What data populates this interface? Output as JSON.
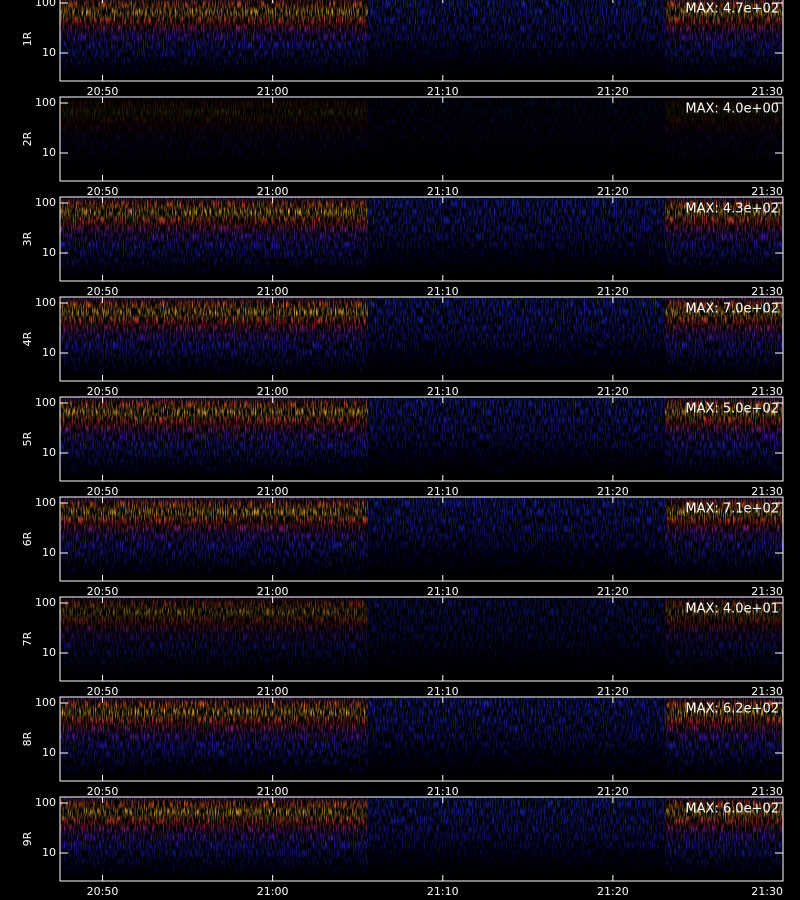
{
  "chart_data": [
    {
      "type": "spectrogram",
      "ylabel": "1R",
      "max": {
        "value": 470,
        "label": "MAX: 4.7e+02"
      },
      "ylog": true,
      "ylim": [
        2.75,
        132
      ],
      "yticks": [
        10,
        100
      ],
      "xlim": [
        1247.5,
        1290
      ],
      "xticks": [
        {
          "value": 1250,
          "label": "20:50"
        },
        {
          "value": 1260,
          "label": "21:00"
        },
        {
          "value": 1270,
          "label": "21:10"
        },
        {
          "value": 1280,
          "label": "21:20"
        },
        {
          "value": 1290,
          "label": "21:30"
        }
      ]
    },
    {
      "type": "spectrogram",
      "ylabel": "2R",
      "max": {
        "value": 4,
        "label": "MAX: 4.0e+00"
      },
      "ylog": true,
      "ylim": [
        2.75,
        132
      ],
      "yticks": [
        10,
        100
      ],
      "xlim": [
        1247.5,
        1290
      ],
      "xticks": [
        {
          "value": 1250,
          "label": "20:50"
        },
        {
          "value": 1260,
          "label": "21:00"
        },
        {
          "value": 1270,
          "label": "21:10"
        },
        {
          "value": 1280,
          "label": "21:20"
        },
        {
          "value": 1290,
          "label": "21:30"
        }
      ]
    },
    {
      "type": "spectrogram",
      "ylabel": "3R",
      "max": {
        "value": 430,
        "label": "MAX: 4.3e+02"
      },
      "ylog": true,
      "ylim": [
        2.75,
        132
      ],
      "yticks": [
        10,
        100
      ],
      "xlim": [
        1247.5,
        1290
      ],
      "xticks": [
        {
          "value": 1250,
          "label": "20:50"
        },
        {
          "value": 1260,
          "label": "21:00"
        },
        {
          "value": 1270,
          "label": "21:10"
        },
        {
          "value": 1280,
          "label": "21:20"
        },
        {
          "value": 1290,
          "label": "21:30"
        }
      ]
    },
    {
      "type": "spectrogram",
      "ylabel": "4R",
      "max": {
        "value": 700,
        "label": "MAX: 7.0e+02"
      },
      "ylog": true,
      "ylim": [
        2.75,
        132
      ],
      "yticks": [
        10,
        100
      ],
      "xlim": [
        1247.5,
        1290
      ],
      "xticks": [
        {
          "value": 1250,
          "label": "20:50"
        },
        {
          "value": 1260,
          "label": "21:00"
        },
        {
          "value": 1270,
          "label": "21:10"
        },
        {
          "value": 1280,
          "label": "21:20"
        },
        {
          "value": 1290,
          "label": "21:30"
        }
      ]
    },
    {
      "type": "spectrogram",
      "ylabel": "5R",
      "max": {
        "value": 500,
        "label": "MAX: 5.0e+02"
      },
      "ylog": true,
      "ylim": [
        2.75,
        132
      ],
      "yticks": [
        10,
        100
      ],
      "xlim": [
        1247.5,
        1290
      ],
      "xticks": [
        {
          "value": 1250,
          "label": "20:50"
        },
        {
          "value": 1260,
          "label": "21:00"
        },
        {
          "value": 1270,
          "label": "21:10"
        },
        {
          "value": 1280,
          "label": "21:20"
        },
        {
          "value": 1290,
          "label": "21:30"
        }
      ]
    },
    {
      "type": "spectrogram",
      "ylabel": "6R",
      "max": {
        "value": 710,
        "label": "MAX: 7.1e+02"
      },
      "ylog": true,
      "ylim": [
        2.75,
        132
      ],
      "yticks": [
        10,
        100
      ],
      "xlim": [
        1247.5,
        1290
      ],
      "xticks": [
        {
          "value": 1250,
          "label": "20:50"
        },
        {
          "value": 1260,
          "label": "21:00"
        },
        {
          "value": 1270,
          "label": "21:10"
        },
        {
          "value": 1280,
          "label": "21:20"
        },
        {
          "value": 1290,
          "label": "21:30"
        }
      ]
    },
    {
      "type": "spectrogram",
      "ylabel": "7R",
      "max": {
        "value": 40,
        "label": "MAX: 4.0e+01"
      },
      "ylog": true,
      "ylim": [
        2.75,
        132
      ],
      "yticks": [
        10,
        100
      ],
      "xlim": [
        1247.5,
        1290
      ],
      "xticks": [
        {
          "value": 1250,
          "label": "20:50"
        },
        {
          "value": 1260,
          "label": "21:00"
        },
        {
          "value": 1270,
          "label": "21:10"
        },
        {
          "value": 1280,
          "label": "21:20"
        },
        {
          "value": 1290,
          "label": "21:30"
        }
      ]
    },
    {
      "type": "spectrogram",
      "ylabel": "8R",
      "max": {
        "value": 620,
        "label": "MAX: 6.2e+02"
      },
      "ylog": true,
      "ylim": [
        2.75,
        132
      ],
      "yticks": [
        10,
        100
      ],
      "xlim": [
        1247.5,
        1290
      ],
      "xticks": [
        {
          "value": 1250,
          "label": "20:50"
        },
        {
          "value": 1260,
          "label": "21:00"
        },
        {
          "value": 1270,
          "label": "21:10"
        },
        {
          "value": 1280,
          "label": "21:20"
        },
        {
          "value": 1290,
          "label": "21:30"
        }
      ]
    },
    {
      "type": "spectrogram",
      "ylabel": "9R",
      "max": {
        "value": 600,
        "label": "MAX: 6.0e+02"
      },
      "ylog": true,
      "ylim": [
        2.75,
        132
      ],
      "yticks": [
        10,
        100
      ],
      "xlim": [
        1247.5,
        1290
      ],
      "xticks": [
        {
          "value": 1250,
          "label": "20:50"
        },
        {
          "value": 1260,
          "label": "21:00"
        },
        {
          "value": 1270,
          "label": "21:10"
        },
        {
          "value": 1280,
          "label": "21:20"
        },
        {
          "value": 1290,
          "label": "21:30"
        }
      ]
    }
  ]
}
